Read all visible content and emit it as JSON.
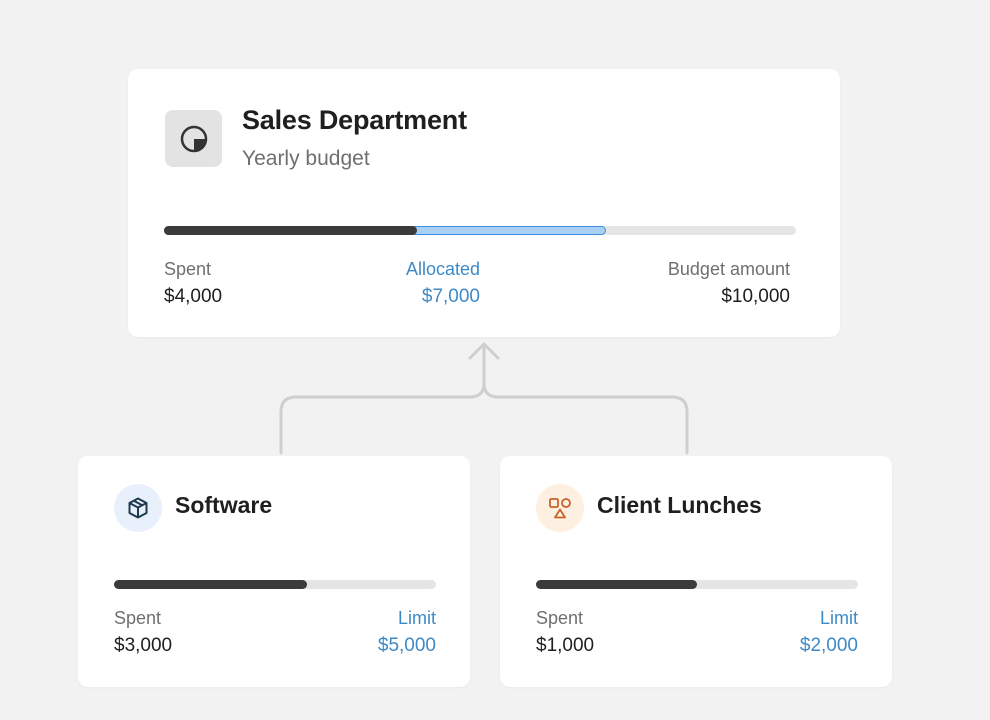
{
  "main": {
    "title": "Sales Department",
    "subtitle": "Yearly budget",
    "icon": "pie-chart-icon",
    "spent": {
      "label": "Spent",
      "value": "$4,000",
      "amount": 4000
    },
    "allocated": {
      "label": "Allocated",
      "value": "$7,000",
      "amount": 7000
    },
    "budget": {
      "label": "Budget amount",
      "value": "$10,000",
      "amount": 10000
    }
  },
  "cards": [
    {
      "title": "Software",
      "icon": "package-box-icon",
      "spent": {
        "label": "Spent",
        "value": "$3,000",
        "amount": 3000
      },
      "limit": {
        "label": "Limit",
        "value": "$5,000",
        "amount": 5000
      }
    },
    {
      "title": "Client Lunches",
      "icon": "shapes-icon",
      "spent": {
        "label": "Spent",
        "value": "$1,000",
        "amount": 1000
      },
      "limit": {
        "label": "Limit",
        "value": "$2,000",
        "amount": 2000
      }
    }
  ],
  "colors": {
    "background": "#f2f2f2",
    "card": "#ffffff",
    "accent_blue": "#3d8ac8",
    "allocated_fill": "#a9d0f5",
    "spent_fill": "#3b3b3b",
    "track": "#e5e5e5",
    "software_icon_bg": "#e8f1fb",
    "software_icon": "#1e3a4f",
    "lunch_icon_bg": "#fdf0e0",
    "lunch_icon": "#c9622a"
  }
}
